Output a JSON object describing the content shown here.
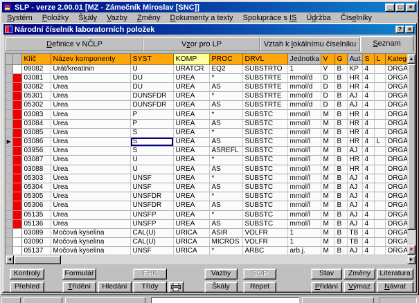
{
  "colors": {
    "titlebar_gradient_start": "#000080",
    "titlebar_gradient_end": "#1084d0",
    "chrome_gray": "#c0c0c0",
    "header_orange": "#ffa60a",
    "header_highlight_yellow": "#ffff9c",
    "header_gray": "#c0c0c0",
    "indicator_red": "#f20000",
    "focus_cell_navy": "#000080",
    "scroll_down_arrow_red": "#d00000"
  },
  "icons": {
    "minimize": "_",
    "maximize": "□",
    "close": "×",
    "help": "?",
    "row_marker": "▶",
    "scroll_up": "▲",
    "scroll_down": "▼",
    "scroll_left": "◄",
    "scroll_right": "►"
  },
  "window": {
    "title": "SLP - verze 2.00.01 [MZ - Zámečník Miroslav [SNC]]"
  },
  "menu": {
    "items": [
      {
        "id": "system",
        "label": "&Systém"
      },
      {
        "id": "polozky",
        "label": "&Položky"
      },
      {
        "id": "skaly",
        "label": "Š&kály"
      },
      {
        "id": "vazby",
        "label": "&Vazby"
      },
      {
        "id": "zmeny",
        "label": "&Změny"
      },
      {
        "id": "dokumenty-a-texty",
        "label": "&Dokumenty a texty"
      },
      {
        "id": "spoluprace-s-is",
        "label": "Spolupráce s &I&S"
      },
      {
        "id": "udrzba",
        "label": "Ú&držba"
      },
      {
        "id": "ciselniky",
        "label": "Čís&elníky"
      }
    ]
  },
  "child": {
    "title": "Národní číselník laboratorních položek"
  },
  "tabs": {
    "active": "seznam",
    "items": [
      {
        "id": "definice",
        "label": "&Definice v NČLP"
      },
      {
        "id": "vzor",
        "label": "V&zor pro LP"
      },
      {
        "id": "vztah",
        "label": "Vztah k &lokálnímu číselníku"
      },
      {
        "id": "seznam",
        "label": "&Seznam"
      }
    ]
  },
  "table": {
    "highlighted_column": "komp",
    "selected_key": "03086",
    "columns": [
      "key",
      "nazev",
      "syst",
      "komp",
      "proc",
      "drvl",
      "jednotka",
      "v",
      "g",
      "aut",
      "s",
      "l",
      "kat"
    ],
    "headers": [
      {
        "id": "key",
        "label": "Klíč"
      },
      {
        "id": "nazev",
        "label": "Název komponenty"
      },
      {
        "id": "syst",
        "label": "SYST"
      },
      {
        "id": "komp",
        "label": "KOMP"
      },
      {
        "id": "proc",
        "label": "PROC"
      },
      {
        "id": "drvl",
        "label": "DRVL"
      },
      {
        "id": "jednotka",
        "label": "Jednotka"
      },
      {
        "id": "v",
        "label": "V"
      },
      {
        "id": "g",
        "label": "G"
      },
      {
        "id": "aut",
        "label": "Aut."
      },
      {
        "id": "s",
        "label": "S"
      },
      {
        "id": "l",
        "label": "L"
      },
      {
        "id": "kat",
        "label": "Kategorie"
      }
    ],
    "rows": [
      {
        "key": "09082",
        "nazev": "Urát/kreatinin",
        "syst": "U",
        "komp": "URATCR",
        "proc": "EQ2",
        "drvl": "SUBSTRTO",
        "jednotka": "1",
        "v": "V",
        "g": "B",
        "aut": "KP",
        "s": "4",
        "l": "",
        "kat": "ORGA",
        "indicator": "white"
      },
      {
        "key": "03081",
        "nazev": "Urea",
        "syst": "DU",
        "komp": "UREA",
        "proc": "*",
        "drvl": "SUBSTRTE",
        "jednotka": "mmol/d",
        "v": "D",
        "g": "B",
        "aut": "HR",
        "s": "4",
        "l": "",
        "kat": "ORGA",
        "indicator": "red"
      },
      {
        "key": "03082",
        "nazev": "Urea",
        "syst": "DU",
        "komp": "UREA",
        "proc": "AS",
        "drvl": "SUBSTRTE",
        "jednotka": "mmol/d",
        "v": "D",
        "g": "B",
        "aut": "HR",
        "s": "4",
        "l": "",
        "kat": "ORGA",
        "indicator": "red"
      },
      {
        "key": "05301",
        "nazev": "Urea",
        "syst": "DUNSFDR",
        "komp": "UREA",
        "proc": "*",
        "drvl": "SUBSTRTE",
        "jednotka": "mmol/d",
        "v": "D",
        "g": "B",
        "aut": "AJ",
        "s": "4",
        "l": "",
        "kat": "ORGA",
        "indicator": "red"
      },
      {
        "key": "05302",
        "nazev": "Urea",
        "syst": "DUNSFDR",
        "komp": "UREA",
        "proc": "AS",
        "drvl": "SUBSTRTE",
        "jednotka": "mmol/d",
        "v": "D",
        "g": "B",
        "aut": "AJ",
        "s": "4",
        "l": "",
        "kat": "ORGA",
        "indicator": "red"
      },
      {
        "key": "03083",
        "nazev": "Urea",
        "syst": "P",
        "komp": "UREA",
        "proc": "*",
        "drvl": "SUBSTC",
        "jednotka": "mmol/l",
        "v": "M",
        "g": "B",
        "aut": "HR",
        "s": "4",
        "l": "",
        "kat": "ORGA",
        "indicator": "red"
      },
      {
        "key": "03084",
        "nazev": "Urea",
        "syst": "P",
        "komp": "UREA",
        "proc": "AS",
        "drvl": "SUBSTC",
        "jednotka": "mmol/l",
        "v": "M",
        "g": "B",
        "aut": "HR",
        "s": "4",
        "l": "",
        "kat": "ORGA",
        "indicator": "red"
      },
      {
        "key": "03085",
        "nazev": "Urea",
        "syst": "S",
        "komp": "UREA",
        "proc": "*",
        "drvl": "SUBSTC",
        "jednotka": "mmol/l",
        "v": "M",
        "g": "B",
        "aut": "HR",
        "s": "4",
        "l": "",
        "kat": "ORGA",
        "indicator": "red"
      },
      {
        "key": "03086",
        "nazev": "Urea",
        "syst": "S",
        "komp": "UREA",
        "proc": "AS",
        "drvl": "SUBSTC",
        "jednotka": "mmol/l",
        "v": "M",
        "g": "B",
        "aut": "HR",
        "s": "4",
        "l": "L",
        "kat": "ORGA",
        "indicator": "red"
      },
      {
        "key": "03956",
        "nazev": "Urea",
        "syst": "S",
        "komp": "UREA",
        "proc": "ASREFL",
        "drvl": "SUBSTC",
        "jednotka": "mmol/l",
        "v": "M",
        "g": "B",
        "aut": "AJ",
        "s": "4",
        "l": "",
        "kat": "ORGA",
        "indicator": "red"
      },
      {
        "key": "03087",
        "nazev": "Urea",
        "syst": "U",
        "komp": "UREA",
        "proc": "*",
        "drvl": "SUBSTC",
        "jednotka": "mmol/l",
        "v": "M",
        "g": "B",
        "aut": "HR",
        "s": "4",
        "l": "",
        "kat": "ORGA",
        "indicator": "red"
      },
      {
        "key": "03088",
        "nazev": "Urea",
        "syst": "U",
        "komp": "UREA",
        "proc": "AS",
        "drvl": "SUBSTC",
        "jednotka": "mmol/l",
        "v": "M",
        "g": "B",
        "aut": "HR",
        "s": "4",
        "l": "",
        "kat": "ORGA",
        "indicator": "red"
      },
      {
        "key": "05303",
        "nazev": "Urea",
        "syst": "UNSF",
        "komp": "UREA",
        "proc": "*",
        "drvl": "SUBSTC",
        "jednotka": "mmol/l",
        "v": "M",
        "g": "B",
        "aut": "AJ",
        "s": "4",
        "l": "",
        "kat": "ORGA",
        "indicator": "red"
      },
      {
        "key": "05304",
        "nazev": "Urea",
        "syst": "UNSF",
        "komp": "UREA",
        "proc": "AS",
        "drvl": "SUBSTC",
        "jednotka": "mmol/l",
        "v": "M",
        "g": "B",
        "aut": "AJ",
        "s": "4",
        "l": "",
        "kat": "ORGA",
        "indicator": "red"
      },
      {
        "key": "05305",
        "nazev": "Urea",
        "syst": "UNSFDR",
        "komp": "UREA",
        "proc": "*",
        "drvl": "SUBSTC",
        "jednotka": "mmol/l",
        "v": "M",
        "g": "B",
        "aut": "AJ",
        "s": "4",
        "l": "",
        "kat": "ORGA",
        "indicator": "red"
      },
      {
        "key": "05306",
        "nazev": "Urea",
        "syst": "UNSFDR",
        "komp": "UREA",
        "proc": "AS",
        "drvl": "SUBSTC",
        "jednotka": "mmol/l",
        "v": "M",
        "g": "B",
        "aut": "AJ",
        "s": "4",
        "l": "",
        "kat": "ORGA",
        "indicator": "red"
      },
      {
        "key": "05135",
        "nazev": "Urea",
        "syst": "UNSFP",
        "komp": "UREA",
        "proc": "*",
        "drvl": "SUBSTC",
        "jednotka": "mmol/l",
        "v": "M",
        "g": "B",
        "aut": "AJ",
        "s": "4",
        "l": "",
        "kat": "ORGA",
        "indicator": "red"
      },
      {
        "key": "05136",
        "nazev": "Urea",
        "syst": "UNSFP",
        "komp": "UREA",
        "proc": "AS",
        "drvl": "SUBSTC",
        "jednotka": "mmol/l",
        "v": "M",
        "g": "B",
        "aut": "AJ",
        "s": "4",
        "l": "",
        "kat": "ORGA",
        "indicator": "red"
      },
      {
        "key": "03089",
        "nazev": "Močová kyselina",
        "syst": "CAL(U)",
        "komp": "URICA",
        "proc": "ASIR",
        "drvl": "VOLFR",
        "jednotka": "1",
        "v": "M",
        "g": "B",
        "aut": "TB",
        "s": "4",
        "l": "",
        "kat": "ORGA",
        "indicator": "white"
      },
      {
        "key": "03090",
        "nazev": "Močová kyselina",
        "syst": "CAL(U)",
        "komp": "URICA",
        "proc": "MICROS",
        "drvl": "VOLFR",
        "jednotka": "1",
        "v": "M",
        "g": "B",
        "aut": "TB",
        "s": "4",
        "l": "",
        "kat": "ORGA",
        "indicator": "white"
      },
      {
        "key": "05137",
        "nazev": "Močová kyselina",
        "syst": "UNSF",
        "komp": "URICA",
        "proc": "*",
        "drvl": "ARBC",
        "jednotka": "arb.j.",
        "v": "M",
        "g": "B",
        "aut": "AJ",
        "s": "4",
        "l": "",
        "kat": "ORGA",
        "indicator": "white"
      }
    ]
  },
  "buttons": {
    "kontroly": "Kontroly",
    "prehled": "Přehled",
    "formular": "Formulář",
    "trideni": "&Třídění",
    "hledani": "Hledání",
    "ehk": "EHK",
    "tridy": "Třídy",
    "vazby": "Vazby",
    "skaly": "Škály",
    "sop": "SOP",
    "repet": "Repet",
    "stav": "Stav",
    "pridani": "&Přidání",
    "zmeny": "Změny",
    "vymaz": "&Výmaz",
    "literatura": "Literatura",
    "navrat": "&Návrat"
  }
}
